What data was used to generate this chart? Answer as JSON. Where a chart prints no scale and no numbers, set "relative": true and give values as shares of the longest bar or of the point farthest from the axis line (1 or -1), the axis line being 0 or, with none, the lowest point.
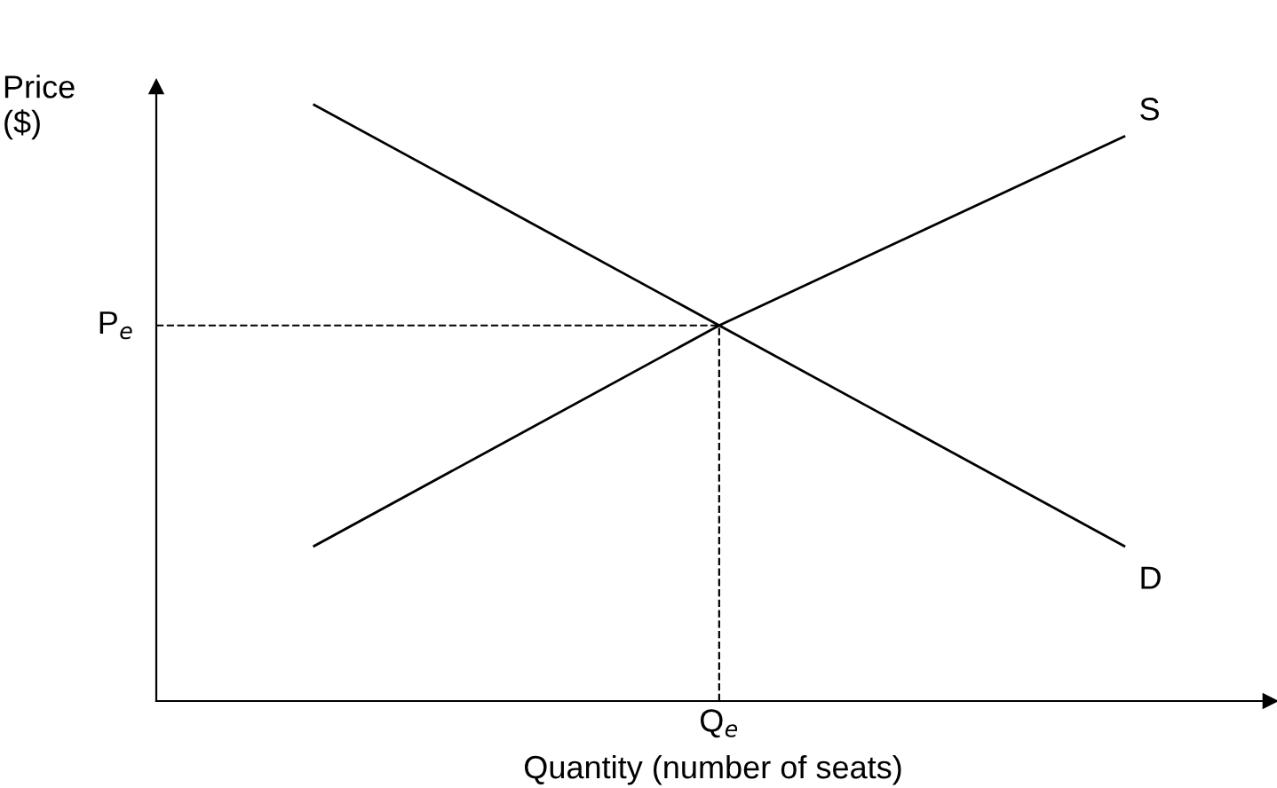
{
  "chart_data": {
    "type": "line",
    "relative": true,
    "xlabel": "Quantity (number of seats)",
    "ylabel": "Price\n($)",
    "categories": [
      null,
      null,
      null
    ],
    "series": [
      {
        "name": "D",
        "color": "#000000",
        "values": [
          1,
          0.63,
          0.26
        ]
      },
      {
        "name": "S",
        "color": "#000000",
        "values": [
          0.26,
          0.63,
          0.947
        ]
      }
    ],
    "ref_lines": [
      {
        "axis": "y",
        "value": 0.63,
        "label": "P$_{e}$",
        "color": "#000000",
        "line_style": "dashed"
      }
    ],
    "annotations": [
      "Q$_{e}$"
    ],
    "marker": "none",
    "line_style": "solid"
  }
}
